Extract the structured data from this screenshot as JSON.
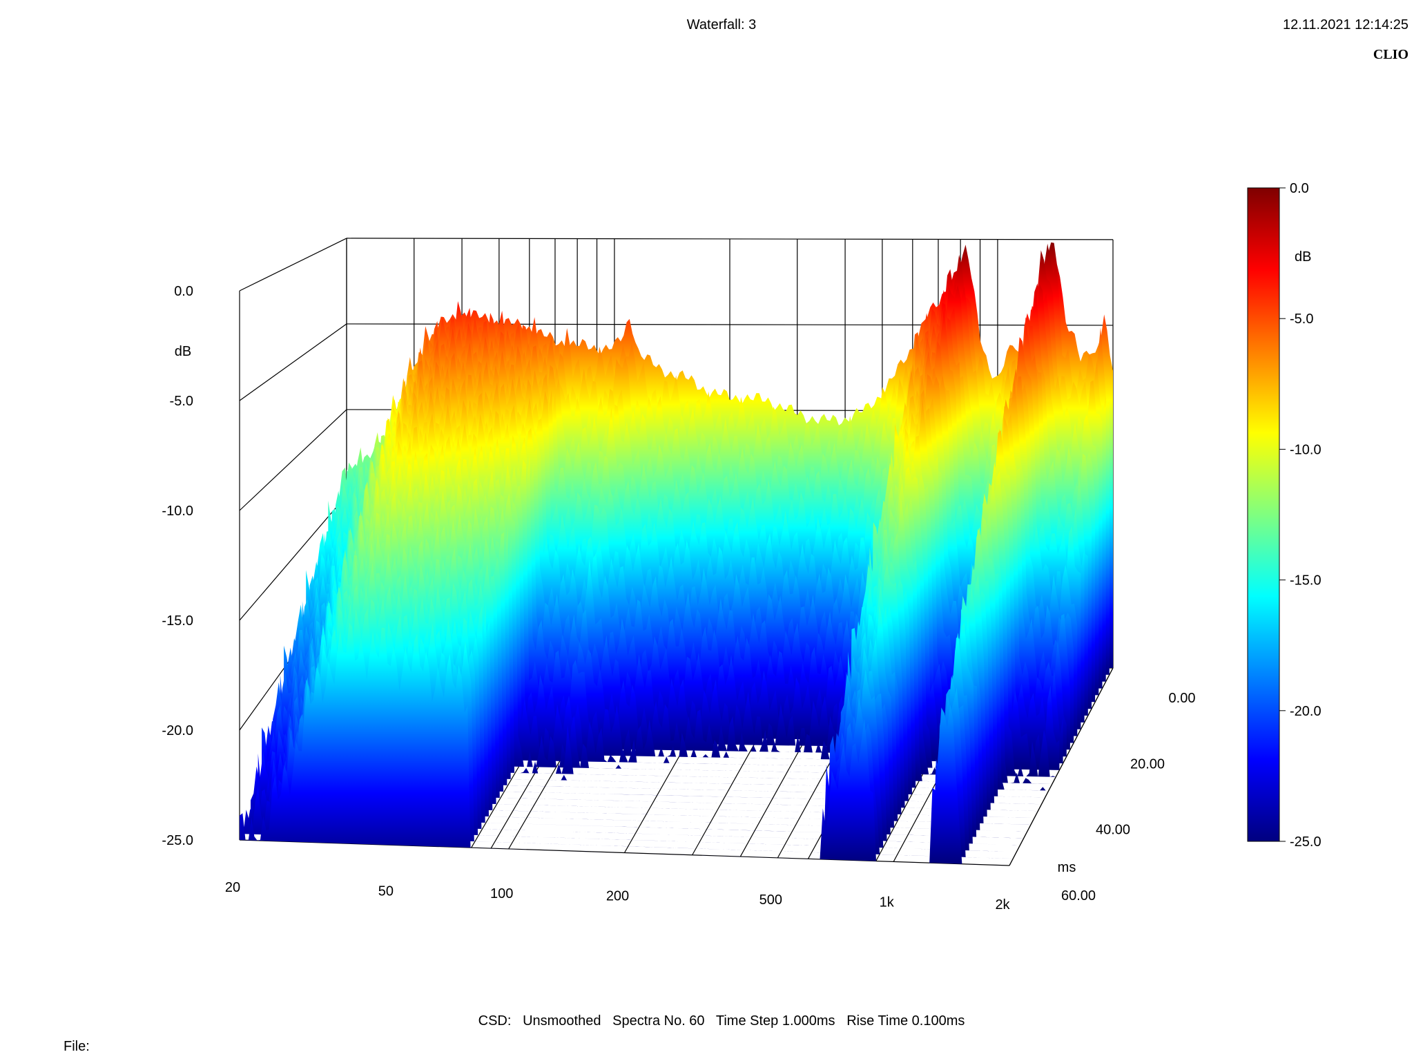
{
  "header": {
    "title": "Waterfall: 3",
    "datetime": "12.11.2021 12:14:25",
    "brand": "CLIO"
  },
  "footer": {
    "info": "CSD:   Unsmoothed   Spectra No. 60   Time Step 1.000ms   Rise Time 0.100ms",
    "file_label": "File:"
  },
  "chart_data": {
    "type": "waterfall",
    "title": "Waterfall: 3",
    "x_axis": {
      "scale": "log",
      "range": [
        20,
        2000
      ],
      "ticks": [
        20,
        50,
        100,
        200,
        500,
        1000,
        2000
      ],
      "tick_labels": [
        "20",
        "50",
        "100",
        "200",
        "500",
        "1k",
        "2k"
      ]
    },
    "y_axis": {
      "label": "dB",
      "range": [
        -25,
        0
      ],
      "ticks": [
        0,
        -5,
        -10,
        -15,
        -20,
        -25
      ],
      "tick_labels": [
        "0.0",
        "-5.0",
        "-10.0",
        "-15.0",
        "-20.0",
        "-25.0"
      ]
    },
    "z_axis": {
      "label": "ms",
      "range": [
        0,
        60
      ],
      "ticks": [
        0,
        20,
        40,
        60
      ],
      "tick_labels": [
        "0.00",
        "20.00",
        "40.00",
        "60.00"
      ]
    },
    "colorbar": {
      "label": "dB",
      "range": [
        -25,
        0
      ],
      "ticks": [
        0,
        -5,
        -10,
        -15,
        -20,
        -25
      ],
      "tick_labels": [
        "0.0",
        "-5.0",
        "-10.0",
        "-15.0",
        "-20.0",
        "-25.0"
      ]
    },
    "spectra_count": 60,
    "time_step_ms": 1.0,
    "first_spectrum": [
      [
        20,
        -13.5
      ],
      [
        23,
        -12.8
      ],
      [
        26,
        -11.0
      ],
      [
        30,
        -7.5
      ],
      [
        35,
        -5.0
      ],
      [
        40,
        -4.4
      ],
      [
        45,
        -4.6
      ],
      [
        50,
        -4.9
      ],
      [
        55,
        -5.0
      ],
      [
        60,
        -5.2
      ],
      [
        70,
        -6.0
      ],
      [
        80,
        -6.2
      ],
      [
        90,
        -6.4
      ],
      [
        100,
        -6.3
      ],
      [
        105,
        -5.8
      ],
      [
        110,
        -4.5
      ],
      [
        115,
        -6.5
      ],
      [
        130,
        -7.6
      ],
      [
        150,
        -8.0
      ],
      [
        180,
        -9.0
      ],
      [
        200,
        -9.2
      ],
      [
        250,
        -9.4
      ],
      [
        300,
        -10.2
      ],
      [
        350,
        -10.6
      ],
      [
        400,
        -10.5
      ],
      [
        450,
        -10.0
      ],
      [
        500,
        -9.0
      ],
      [
        550,
        -7.6
      ],
      [
        600,
        -6.3
      ],
      [
        650,
        -4.5
      ],
      [
        700,
        -3.8
      ],
      [
        750,
        -2.5
      ],
      [
        800,
        -1.4
      ],
      [
        830,
        -0.6
      ],
      [
        860,
        -2.5
      ],
      [
        900,
        -5.5
      ],
      [
        950,
        -7.5
      ],
      [
        1000,
        -8.4
      ],
      [
        1050,
        -7.0
      ],
      [
        1100,
        -5.8
      ],
      [
        1150,
        -7.0
      ],
      [
        1200,
        -6.0
      ],
      [
        1250,
        -4.0
      ],
      [
        1300,
        -2.2
      ],
      [
        1350,
        -0.6
      ],
      [
        1400,
        0.0
      ],
      [
        1450,
        -1.8
      ],
      [
        1500,
        -4.8
      ],
      [
        1550,
        -5.5
      ],
      [
        1600,
        -6.0
      ],
      [
        1650,
        -7.0
      ],
      [
        1700,
        -6.5
      ],
      [
        1750,
        -6.2
      ],
      [
        1800,
        -6.8
      ],
      [
        1850,
        -5.8
      ],
      [
        1900,
        -4.5
      ],
      [
        1950,
        -6.5
      ],
      [
        2000,
        -7.5
      ]
    ]
  }
}
